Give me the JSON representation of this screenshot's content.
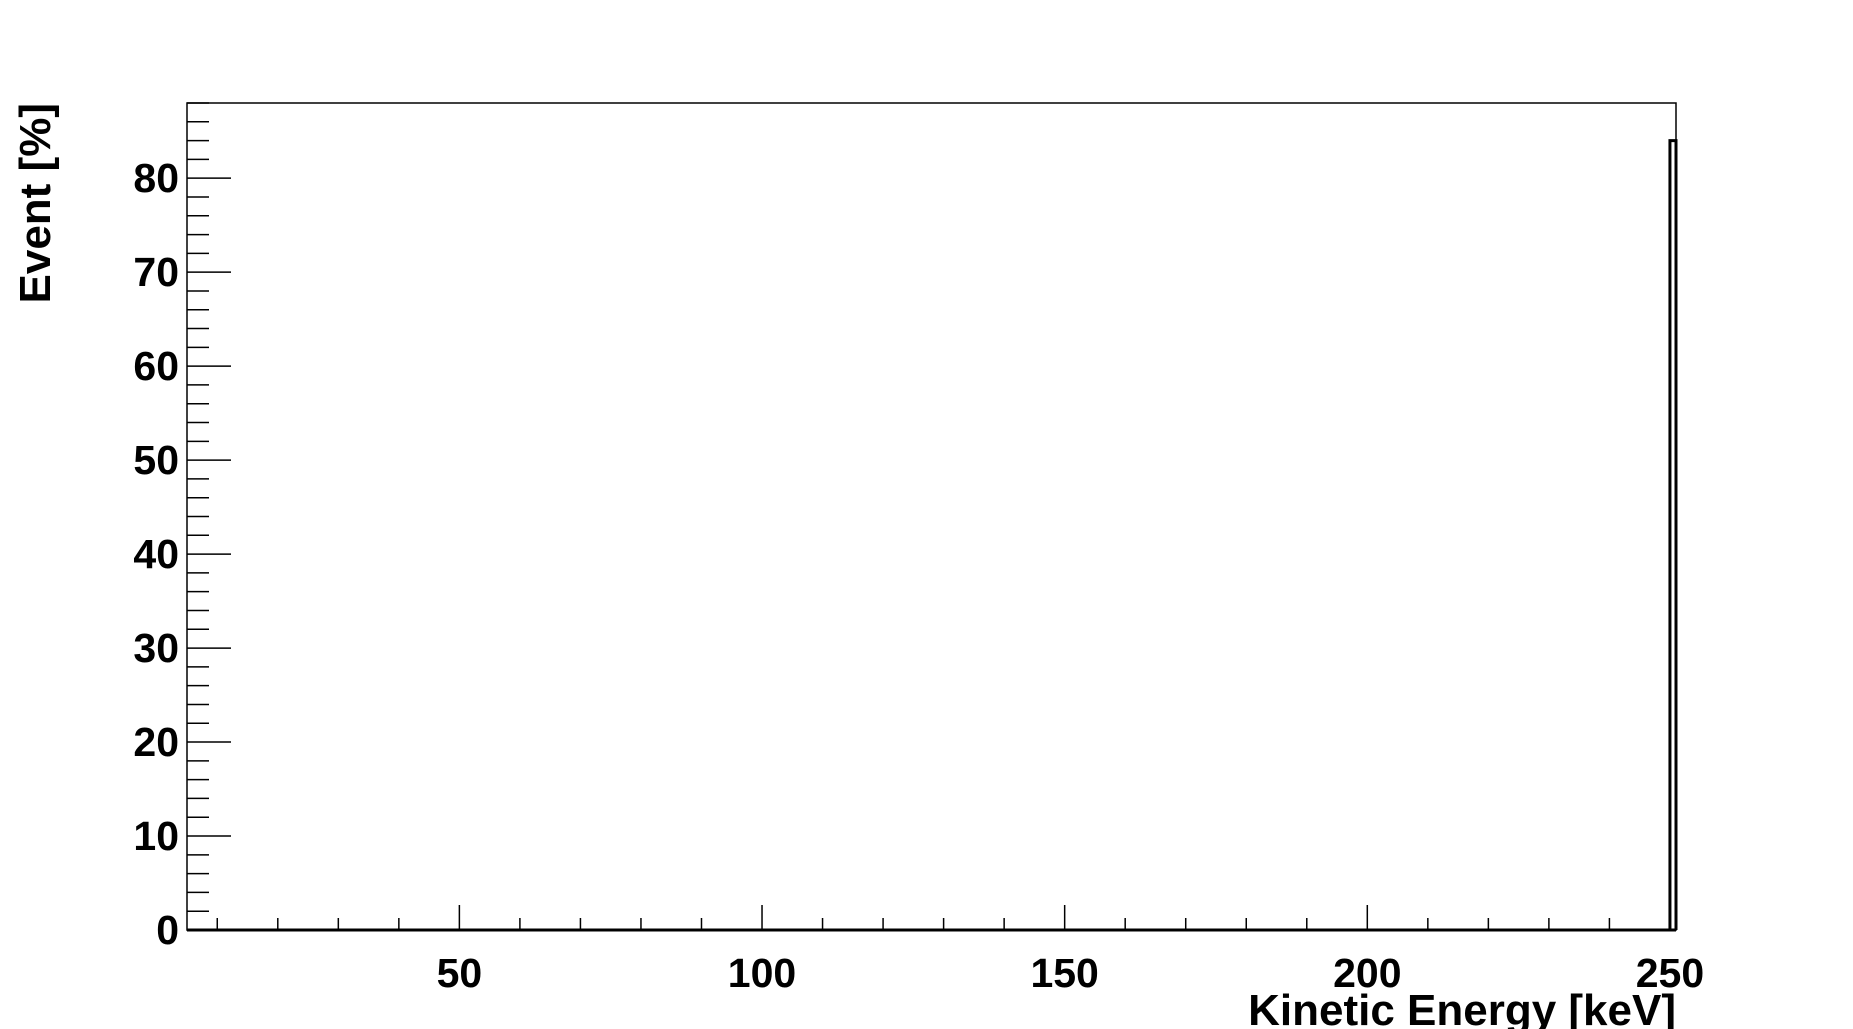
{
  "chart_data": {
    "type": "bar",
    "title": "",
    "xlabel": "Kinetic Energy [keV]",
    "ylabel": "Event [%]",
    "xlim": [
      5,
      251
    ],
    "ylim": [
      0,
      88
    ],
    "x_ticks": [
      50,
      100,
      150,
      200,
      250
    ],
    "y_ticks": [
      0,
      10,
      20,
      30,
      40,
      50,
      60,
      70,
      80
    ],
    "grid": false,
    "legend": "none",
    "bins": [
      {
        "x_low": 250,
        "x_high": 251,
        "value": 84
      }
    ],
    "line_color": "#000000",
    "fill_color": "#ffffff"
  }
}
